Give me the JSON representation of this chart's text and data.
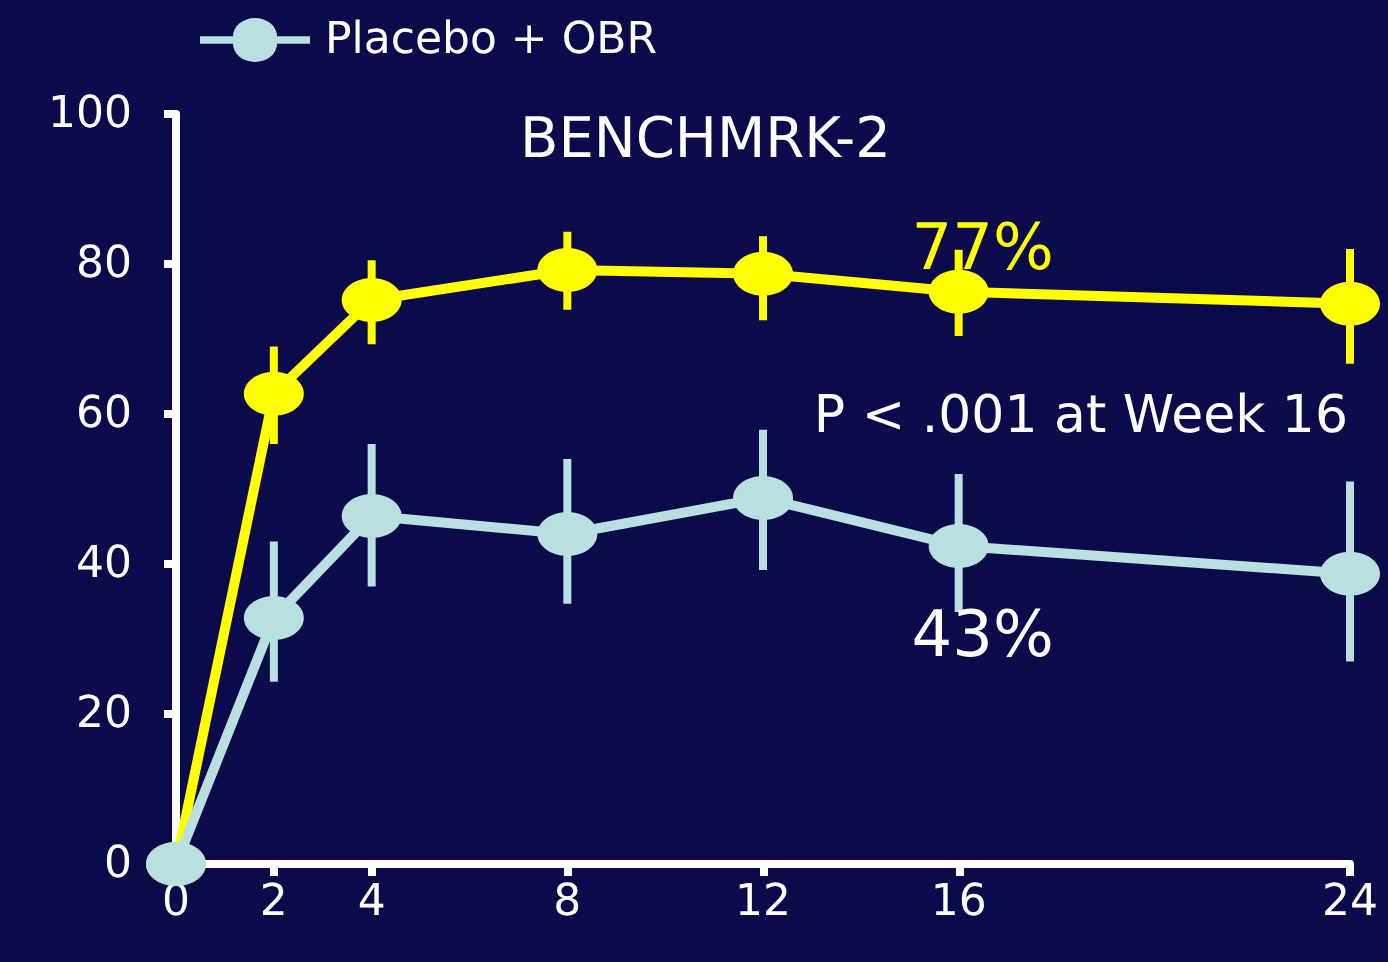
{
  "chart_data": {
    "type": "line",
    "title": "BENCHMRK-2",
    "x": [
      0,
      2,
      4,
      8,
      12,
      16,
      24
    ],
    "series": [
      {
        "color": "#ffff00",
        "values": [
          0,
          62.7,
          75.2,
          79.2,
          78.7,
          76.3,
          74.7
        ],
        "errors": [
          null,
          [
            56,
            69
          ],
          [
            69.3,
            80.5
          ],
          [
            73.9,
            84.3
          ],
          [
            72.5,
            83.7
          ],
          [
            70.4,
            81.9
          ],
          [
            66.7,
            82
          ]
        ]
      },
      {
        "name": "Placebo + OBR",
        "color": "#b9dfe0",
        "values": [
          0,
          32.8,
          46.4,
          44,
          48.8,
          42.4,
          38.7
        ],
        "errors": [
          null,
          [
            24.3,
            43
          ],
          [
            37,
            56
          ],
          [
            34.7,
            54
          ],
          [
            39.2,
            57.9
          ],
          [
            33.6,
            52
          ],
          [
            27,
            51
          ]
        ]
      }
    ],
    "annotations": [
      {
        "text": "77%",
        "x": 16,
        "y": 77
      },
      {
        "text": "43%",
        "x": 16,
        "y": 43
      },
      "P < .001 at Week 16"
    ],
    "xlim": [
      0,
      24
    ],
    "xticks": [
      0,
      2,
      4,
      8,
      12,
      16,
      24
    ],
    "ylim": [
      0,
      100
    ],
    "yticks": [
      0,
      20,
      40,
      60,
      80,
      100
    ],
    "grid": false,
    "legend": "top left",
    "marker": "circle",
    "line_style": "solid"
  }
}
